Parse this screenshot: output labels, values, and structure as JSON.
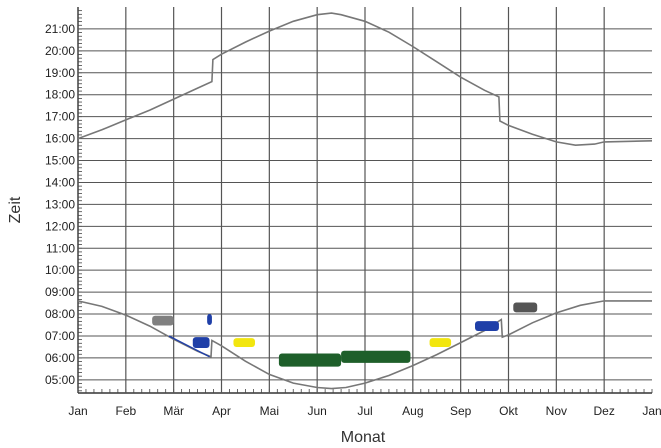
{
  "chart_data": {
    "type": "line",
    "xlabel": "Monat",
    "ylabel": "Zeit",
    "x_categories": [
      "Jan",
      "Feb",
      "Mär",
      "Apr",
      "Mai",
      "Jun",
      "Jul",
      "Aug",
      "Sep",
      "Okt",
      "Nov",
      "Dez",
      "Jan"
    ],
    "y_ticks": [
      "05:00",
      "06:00",
      "07:00",
      "08:00",
      "09:00",
      "10:00",
      "11:00",
      "12:00",
      "13:00",
      "14:00",
      "15:00",
      "16:00",
      "17:00",
      "18:00",
      "19:00",
      "20:00",
      "21:00"
    ],
    "xlim": [
      0,
      12
    ],
    "ylim": [
      4.4,
      22.0
    ],
    "grid": true,
    "series": [
      {
        "color": "#777777",
        "points": [
          [
            0,
            16.0
          ],
          [
            0.5,
            16.4
          ],
          [
            1.0,
            16.85
          ],
          [
            1.5,
            17.3
          ],
          [
            2.0,
            17.8
          ],
          [
            2.5,
            18.3
          ],
          [
            2.8,
            18.6
          ],
          [
            2.82,
            19.6
          ],
          [
            3.0,
            19.85
          ],
          [
            3.5,
            20.4
          ],
          [
            4.0,
            20.9
          ],
          [
            4.5,
            21.35
          ],
          [
            5.0,
            21.65
          ],
          [
            5.3,
            21.72
          ],
          [
            5.5,
            21.65
          ],
          [
            6.0,
            21.35
          ],
          [
            6.5,
            20.85
          ],
          [
            7.0,
            20.2
          ],
          [
            7.5,
            19.5
          ],
          [
            8.0,
            18.8
          ],
          [
            8.5,
            18.2
          ],
          [
            8.8,
            17.9
          ],
          [
            8.82,
            16.8
          ],
          [
            9.0,
            16.6
          ],
          [
            9.5,
            16.2
          ],
          [
            10.0,
            15.85
          ],
          [
            10.4,
            15.7
          ],
          [
            10.8,
            15.75
          ],
          [
            11.0,
            15.85
          ],
          [
            12.0,
            15.9
          ]
        ]
      },
      {
        "color": "#777777",
        "points": [
          [
            0,
            8.6
          ],
          [
            0.5,
            8.35
          ],
          [
            1.0,
            7.95
          ],
          [
            1.5,
            7.45
          ],
          [
            2.0,
            6.85
          ],
          [
            2.5,
            6.3
          ],
          [
            2.78,
            6.05
          ],
          [
            2.8,
            6.8
          ],
          [
            3.0,
            6.55
          ],
          [
            3.5,
            5.85
          ],
          [
            4.0,
            5.25
          ],
          [
            4.5,
            4.85
          ],
          [
            5.0,
            4.65
          ],
          [
            5.3,
            4.6
          ],
          [
            5.6,
            4.65
          ],
          [
            6.0,
            4.85
          ],
          [
            6.5,
            5.2
          ],
          [
            7.0,
            5.65
          ],
          [
            7.5,
            6.15
          ],
          [
            8.0,
            6.7
          ],
          [
            8.5,
            7.25
          ],
          [
            8.85,
            7.75
          ],
          [
            8.87,
            6.95
          ],
          [
            9.0,
            7.05
          ],
          [
            9.5,
            7.6
          ],
          [
            10.0,
            8.05
          ],
          [
            10.5,
            8.4
          ],
          [
            11.0,
            8.6
          ],
          [
            12.0,
            8.6
          ]
        ]
      }
    ],
    "markers": [
      {
        "color": "#808080",
        "x0": 1.55,
        "x1": 2.0,
        "y": 7.7,
        "h": 0.45
      },
      {
        "color": "#1f3fa8",
        "x0": 2.7,
        "x1": 2.8,
        "y": 7.75,
        "h": 0.5
      },
      {
        "color": "#1f3fa8",
        "x0": 2.4,
        "x1": 2.75,
        "y": 6.7,
        "h": 0.5
      },
      {
        "color": "#f2e60f",
        "x0": 3.25,
        "x1": 3.7,
        "y": 6.7,
        "h": 0.4
      },
      {
        "color": "#1e5f2a",
        "x0": 4.2,
        "x1": 5.5,
        "y": 5.9,
        "h": 0.6
      },
      {
        "color": "#1e5f2a",
        "x0": 5.5,
        "x1": 6.95,
        "y": 6.05,
        "h": 0.55
      },
      {
        "color": "#f2e60f",
        "x0": 7.35,
        "x1": 7.8,
        "y": 6.7,
        "h": 0.4
      },
      {
        "color": "#1f3fa8",
        "x0": 8.3,
        "x1": 8.8,
        "y": 7.45,
        "h": 0.45
      },
      {
        "color": "#555555",
        "x0": 9.1,
        "x1": 9.6,
        "y": 8.3,
        "h": 0.45
      }
    ]
  }
}
